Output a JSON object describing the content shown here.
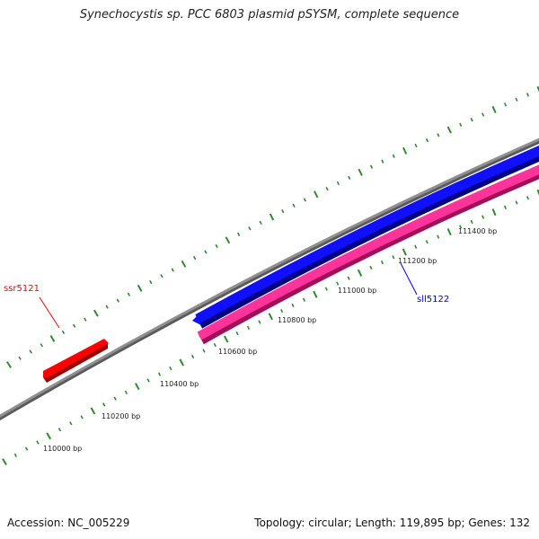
{
  "title": "Synechocystis sp. PCC 6803 plasmid pSYSM, complete sequence",
  "accession_text": "Accession: NC_005229",
  "summary_text": "Topology: circular; Length: 119,895 bp; Genes: 132",
  "scale": {
    "labels": [
      "110000 bp",
      "110200 bp",
      "110400 bp",
      "110600 bp",
      "110800 bp",
      "111000 bp",
      "111200 bp",
      "111400 bp"
    ]
  },
  "genes": [
    {
      "name": "ssr5121",
      "color": "#ff0000",
      "strand": "forward"
    },
    {
      "name": "sll5122",
      "color": "#0000ff",
      "strand": "reverse"
    },
    {
      "name": "",
      "color": "#ff3399",
      "strand": "reverse"
    }
  ],
  "colors": {
    "backbone": "#808080",
    "tick": "#2e8b2e",
    "ssr_label": "#ff0000",
    "sll_label": "#0000cc"
  }
}
